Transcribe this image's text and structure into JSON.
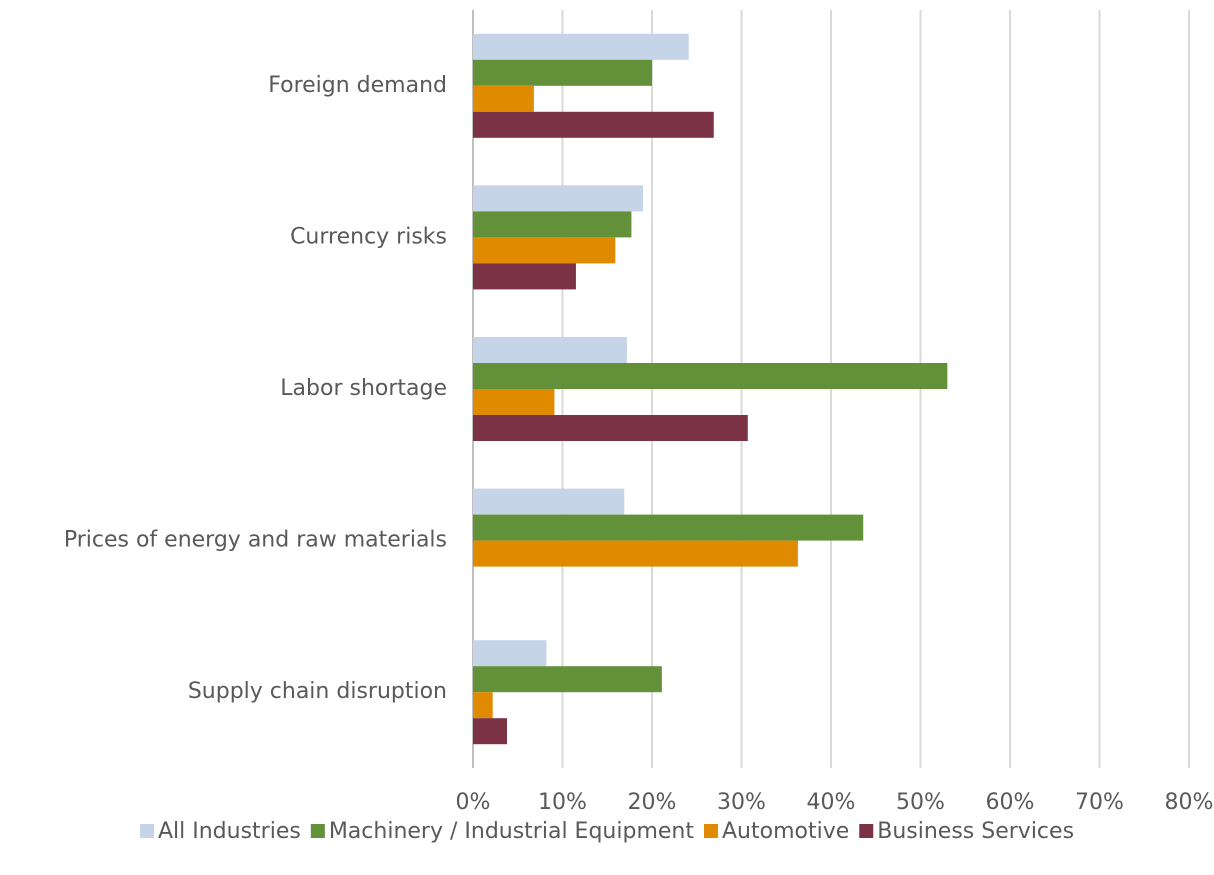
{
  "chart_data": {
    "type": "hbar",
    "categories": [
      "Foreign demand",
      "Currency risks",
      "Labor shortage",
      "Prices of energy and raw materials",
      "Supply chain disruption"
    ],
    "series": [
      {
        "name": "All Industries",
        "color": "#c5d4e6",
        "values": [
          24.1,
          19.0,
          17.2,
          16.9,
          8.2
        ]
      },
      {
        "name": "Machinery / Industrial Equipment",
        "color": "#63913a",
        "values": [
          20.0,
          17.7,
          53.0,
          43.6,
          21.1
        ]
      },
      {
        "name": "Automotive",
        "color": "#e08a00",
        "values": [
          6.8,
          15.9,
          9.1,
          36.3,
          2.2
        ]
      },
      {
        "name": "Business Services",
        "color": "#7b3245",
        "values": [
          26.9,
          11.5,
          30.7,
          null,
          3.8
        ]
      }
    ],
    "xlim": [
      0,
      80
    ],
    "xticks": [
      {
        "value": 0,
        "label": "0%"
      },
      {
        "value": 10,
        "label": "10%"
      },
      {
        "value": 20,
        "label": "20%"
      },
      {
        "value": 30,
        "label": "30%"
      },
      {
        "value": 40,
        "label": "40%"
      },
      {
        "value": 50,
        "label": "50%"
      },
      {
        "value": 60,
        "label": "60%"
      },
      {
        "value": 70,
        "label": "70%"
      },
      {
        "value": 80,
        "label": "80%"
      }
    ],
    "grid": true,
    "legend": "bottom"
  }
}
